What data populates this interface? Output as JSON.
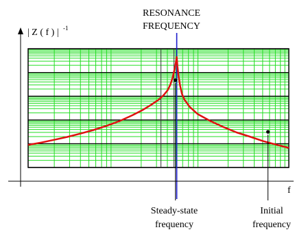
{
  "chart_data": {
    "type": "line",
    "title": "",
    "ylabel_main": "| Z ( f ) |",
    "ylabel_sup": "-1",
    "xlabel": "f",
    "resonance_label": [
      "RESONANCE",
      "FREQUENCY"
    ],
    "x_domain": [
      0,
      100
    ],
    "y_domain": [
      0,
      100
    ],
    "grid": true,
    "log_grid": true,
    "resonance_x": 57,
    "series": [
      {
        "x": [
          0,
          5,
          10,
          15,
          20,
          25,
          30,
          35,
          40,
          44,
          47,
          50,
          52,
          53.5,
          54.5,
          55.2,
          55.8,
          56.3,
          56.7,
          57,
          57.3,
          57.7,
          58.3,
          59,
          60,
          62,
          65,
          70,
          75,
          80,
          85,
          90,
          95,
          100
        ],
        "y": [
          19,
          21,
          23.3,
          25.7,
          28.5,
          31.5,
          35,
          39,
          44,
          48.5,
          52.5,
          57,
          61,
          65,
          69.5,
          74,
          79,
          84,
          89,
          93,
          85,
          77,
          69,
          62,
          57,
          51,
          45,
          39,
          34,
          29.5,
          26,
          22.3,
          19.3,
          16.5
        ]
      }
    ],
    "markers": [
      {
        "x": 56.5,
        "y": 73.5
      },
      {
        "x": 92,
        "y": 30
      }
    ],
    "annotations": [
      {
        "text": [
          "Steady-state",
          "frequency"
        ],
        "x": 56.5
      },
      {
        "text": [
          "Initial",
          "frequency"
        ],
        "x": 92
      }
    ],
    "colors": {
      "curve": "#e01010",
      "grid": "#22dd22",
      "band_dark": "#000000",
      "resonance_line": "#1a1acc",
      "vertical_dark": "#333333"
    }
  }
}
